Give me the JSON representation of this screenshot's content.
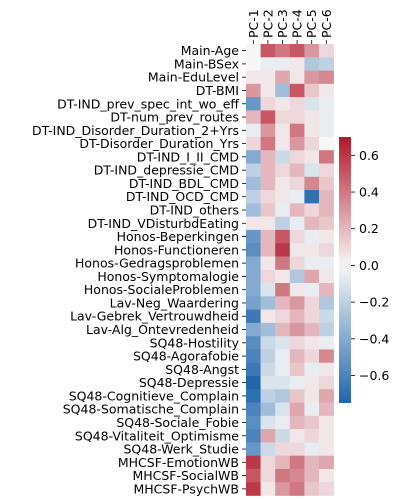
{
  "chart_data": {
    "type": "heatmap",
    "title": "",
    "xlabel": "",
    "ylabel": "",
    "columns": [
      "PC-1",
      "PC-2",
      "PC-3",
      "PC-4",
      "PC-5",
      "PC-6"
    ],
    "rows": [
      "Main-Age",
      "Main-BSex",
      "Main-EduLevel",
      "DT-BMI",
      "DT-IND_prev_spec_int_wo_eff",
      "DT-num_prev_routes",
      "DT-IND_Disorder_Duration_2+Yrs",
      "DT-Disorder_Duration_Yrs",
      "DT-IND_I_II_CMD",
      "DT-IND_depressie_CMD",
      "DT-IND_BDL_CMD",
      "DT-IND_OCD_CMD",
      "DT-IND_others",
      "DT-IND_VDisturbdEating",
      "Honos-Beperkingen",
      "Honos-Functioneren",
      "Honos-Gedragsproblemen",
      "Honos-Symptomalogie",
      "Honos-SocialeProblemen",
      "Lav-Neg_Waardering",
      "Lav-Gebrek_Vertrouwdheid",
      "Lav-Alg_Ontevredenheid",
      "SQ48-Hostility",
      "SQ48-Agorafobie",
      "SQ48-Angst",
      "SQ48-Depressie",
      "SQ48-Cognitieve_Complain",
      "SQ48-Somatische_Complain",
      "SQ48-Sociale_Fobie",
      "SQ48-Vitaliteit_Optimisme",
      "SQ48-Werk_Studie",
      "MHCSF-EmotionWB",
      "MHCSF-SocialWB",
      "MHCSF-PsychWB"
    ],
    "values": [
      [
        0.0,
        0.5,
        0.4,
        0.5,
        0.3,
        0.1
      ],
      [
        0.0,
        -0.05,
        -0.05,
        0.05,
        -0.25,
        -0.2
      ],
      [
        0.05,
        0.05,
        0.25,
        0.05,
        0.3,
        0.35
      ],
      [
        0.3,
        0.05,
        -0.3,
        0.5,
        0.15,
        0.05
      ],
      [
        -0.5,
        0.1,
        0.05,
        0.1,
        -0.1,
        -0.05
      ],
      [
        0.2,
        0.5,
        0.1,
        0.1,
        0.05,
        -0.05
      ],
      [
        -0.05,
        0.3,
        0.05,
        0.4,
        0.05,
        -0.05
      ],
      [
        0.1,
        0.4,
        0.05,
        0.3,
        0.1,
        0.0
      ],
      [
        -0.4,
        0.2,
        -0.15,
        0.1,
        0.05,
        0.4
      ],
      [
        -0.2,
        0.2,
        0.1,
        0.2,
        -0.1,
        0.1
      ],
      [
        -0.3,
        0.2,
        0.05,
        0.1,
        0.35,
        0.15
      ],
      [
        -0.2,
        0.1,
        0.05,
        -0.05,
        -0.7,
        0.2
      ],
      [
        -0.3,
        0.15,
        -0.05,
        0.2,
        0.1,
        0.2
      ],
      [
        0.05,
        0.05,
        -0.2,
        -0.05,
        0.2,
        0.15
      ],
      [
        -0.5,
        0.2,
        0.5,
        0.1,
        -0.05,
        0.05
      ],
      [
        -0.55,
        0.2,
        0.6,
        0.05,
        0.05,
        0.1
      ],
      [
        -0.4,
        0.05,
        0.4,
        0.1,
        -0.05,
        -0.05
      ],
      [
        -0.4,
        0.1,
        0.05,
        -0.25,
        0.25,
        0.05
      ],
      [
        -0.4,
        -0.1,
        0.4,
        0.05,
        -0.05,
        0.2
      ],
      [
        -0.45,
        -0.3,
        0.2,
        0.3,
        0.1,
        -0.25
      ],
      [
        -0.65,
        0.05,
        0.1,
        0.2,
        0.1,
        -0.15
      ],
      [
        -0.4,
        -0.3,
        0.2,
        0.3,
        0.2,
        -0.2
      ],
      [
        -0.55,
        -0.15,
        -0.1,
        0.1,
        0.05,
        -0.05
      ],
      [
        -0.6,
        -0.2,
        -0.05,
        0.2,
        0.1,
        0.35
      ],
      [
        -0.65,
        -0.15,
        -0.05,
        0.15,
        -0.05,
        0.05
      ],
      [
        -0.75,
        -0.1,
        -0.1,
        -0.05,
        0.05,
        0.1
      ],
      [
        -0.7,
        -0.2,
        -0.25,
        0.15,
        0.05,
        0.25
      ],
      [
        -0.6,
        -0.3,
        -0.1,
        0.25,
        -0.05,
        0.2
      ],
      [
        -0.55,
        -0.1,
        -0.05,
        0.2,
        0.15,
        0.05
      ],
      [
        -0.6,
        0.25,
        -0.15,
        0.05,
        0.1,
        0.05
      ],
      [
        -0.5,
        -0.15,
        0.1,
        0.1,
        -0.05,
        0.05
      ],
      [
        0.6,
        0.1,
        0.2,
        0.4,
        0.2,
        0.25
      ],
      [
        0.5,
        0.1,
        0.4,
        0.35,
        0.2,
        0.05
      ],
      [
        0.6,
        0.05,
        0.3,
        0.4,
        0.15,
        0.1
      ]
    ],
    "colorbar": {
      "min": -0.75,
      "max": 0.7,
      "ticks": [
        -0.6,
        -0.4,
        -0.2,
        0.0,
        0.2,
        0.4,
        0.6
      ],
      "tick_labels": [
        "−0.6",
        "−0.4",
        "−0.2",
        "0.0",
        "0.2",
        "0.4",
        "0.6"
      ],
      "colormap": "coolwarm",
      "color_low": "#2166ac",
      "color_mid": "#f7f7f7",
      "color_high": "#b2182b"
    }
  }
}
